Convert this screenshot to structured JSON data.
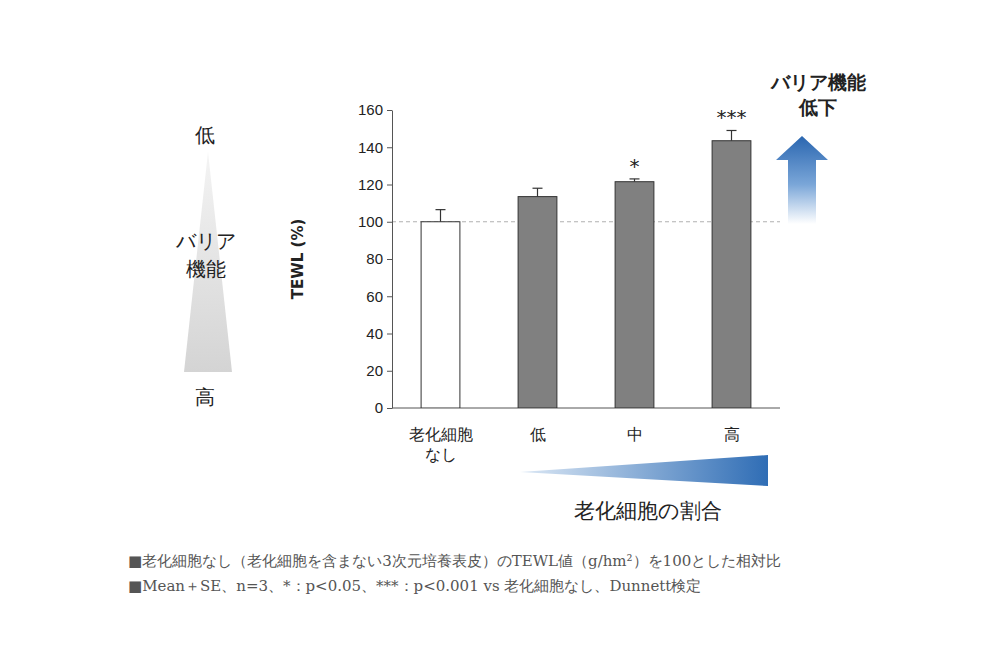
{
  "chart_data": {
    "type": "bar",
    "categories": [
      "老化細胞\nなし",
      "低",
      "中",
      "高"
    ],
    "values": [
      100,
      113.5,
      121.5,
      143.5
    ],
    "errors": [
      6.5,
      4.5,
      1.5,
      5.5
    ],
    "significance": [
      null,
      null,
      "*",
      "***"
    ],
    "colors": [
      "#ffffff",
      "#808080",
      "#808080",
      "#808080"
    ],
    "ylabel": "TEWL (%)",
    "x_label": "老化細胞の割合",
    "ylim": [
      0,
      160
    ],
    "yticks": [
      0,
      20,
      40,
      60,
      80,
      100,
      120,
      140,
      160
    ],
    "reference_line": 100,
    "barrier_scale": {
      "low": "低",
      "label": "バリア\n機能",
      "high": "高"
    },
    "arrow_label": "バリア機能\n低下",
    "footnotes": [
      "■老化細胞なし（老化細胞を含まない3次元培養表皮）のTEWL値（g/hm²）を100とした相対比",
      "■Mean＋SE、n=3、*：p<0.05、***：p<0.001 vs 老化細胞なし、Dunnett検定"
    ]
  }
}
